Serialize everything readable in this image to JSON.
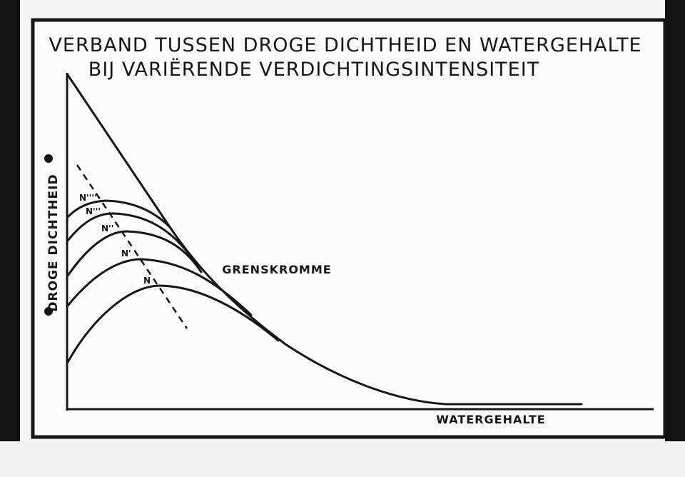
{
  "title": {
    "line1": "VERBAND TUSSEN DROGE DICHTHEID EN WATERGEHALTE",
    "line2": "BIJ VARIËRENDE VERDICHTINGSINTENSITEIT"
  },
  "axes": {
    "ylabel": "DROGE DICHTHEID",
    "xlabel": "WATERGEHALTE"
  },
  "curve_label": "GRENSKROMME",
  "compaction_curves": [
    {
      "label": "N"
    },
    {
      "label": "N'"
    },
    {
      "label": "N''"
    },
    {
      "label": "N'''"
    },
    {
      "label": "N''''"
    }
  ],
  "colors": {
    "ink": "#161616",
    "paper": "#fbfbfb",
    "background": "#111111"
  }
}
